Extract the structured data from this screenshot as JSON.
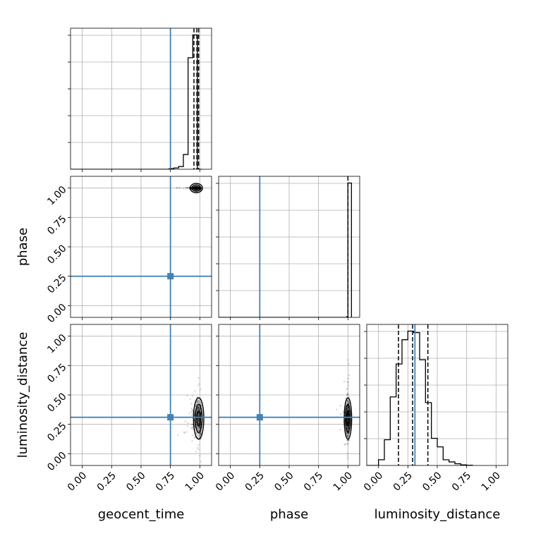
{
  "chart_data": {
    "type": "corner",
    "parameters": [
      "geocent_time",
      "phase",
      "luminosity_distance"
    ],
    "truths": {
      "geocent_time": 0.75,
      "phase": 0.25,
      "luminosity_distance": 0.31
    },
    "truth_color": "#4682b4",
    "grid": true,
    "ticks": [
      "0.00",
      "0.25",
      "0.50",
      "0.75",
      "1.00"
    ],
    "tick_values": [
      0,
      0.25,
      0.5,
      0.75,
      1.0
    ],
    "axis_range": [
      -0.1,
      1.1
    ],
    "hist1d": [
      {
        "param": "geocent_time",
        "bin_edges": [
          0.74,
          0.78,
          0.82,
          0.86,
          0.9,
          0.94,
          0.98,
          1.02
        ],
        "heights": [
          0.005,
          0.01,
          0.02,
          0.11,
          0.83,
          1.0,
          0.0
        ],
        "quantiles": [
          0.95,
          0.975,
          0.99
        ]
      },
      {
        "param": "phase",
        "bin_edges": [
          0.99,
          1.0,
          1.01,
          1.03
        ],
        "heights": [
          0.005,
          1.0,
          1.0
        ],
        "quantiles": [
          1.0
        ]
      },
      {
        "param": "luminosity_distance",
        "bin_edges": [
          0.0,
          0.05,
          0.1,
          0.15,
          0.2,
          0.25,
          0.3,
          0.35,
          0.4,
          0.45,
          0.5,
          0.55,
          0.6,
          0.65,
          0.7,
          0.75,
          0.8
        ],
        "heights": [
          0.04,
          0.18,
          0.48,
          0.71,
          0.88,
          0.94,
          0.93,
          0.74,
          0.44,
          0.19,
          0.13,
          0.04,
          0.025,
          0.012,
          0.004,
          0.002
        ],
        "quantiles": [
          0.17,
          0.29,
          0.42
        ]
      }
    ],
    "hist2d": [
      {
        "x": "geocent_time",
        "y": "phase",
        "center": [
          0.97,
          1.0
        ],
        "spread": [
          0.03,
          0.005
        ]
      },
      {
        "x": "geocent_time",
        "y": "luminosity_distance",
        "center": [
          0.99,
          0.3
        ],
        "spread": [
          0.025,
          0.08
        ]
      },
      {
        "x": "phase",
        "y": "luminosity_distance",
        "center": [
          1.0,
          0.3
        ],
        "spread": [
          0.01,
          0.08
        ]
      }
    ]
  }
}
